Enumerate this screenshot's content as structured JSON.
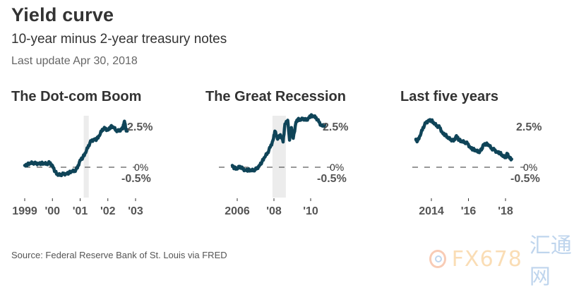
{
  "header": {
    "title": "Yield curve",
    "subtitle": "10-year minus 2-year treasury notes",
    "updated": "Last update Apr 30, 2018"
  },
  "footer": {
    "source": "Source: Federal Reserve Bank of St. Louis via FRED",
    "watermark_latin": "FX678",
    "watermark_cjk": "汇通网"
  },
  "colors": {
    "line": "#0f4458",
    "recession_band": "#ececec",
    "zero_line": "#333333",
    "text": "#333333",
    "axis_text": "#555555"
  },
  "chart_data": [
    {
      "type": "line",
      "title": "The Dot-com Boom",
      "xlabel": "",
      "ylabel": "",
      "unit": "%",
      "xlim": [
        1999.0,
        2003.0
      ],
      "ylim": [
        -0.5,
        2.5
      ],
      "x_ticks": [
        1999,
        2000,
        2001,
        2002,
        2003
      ],
      "x_tick_labels": [
        "1999",
        "'00",
        "'01",
        "'02",
        "'03"
      ],
      "y_labels": [
        {
          "value": 2.5,
          "label": "2.5%"
        },
        {
          "value": 0,
          "label": "0%"
        },
        {
          "value": -0.5,
          "label": "-0.5%"
        }
      ],
      "reference_line": {
        "value": 0,
        "style": "dashed"
      },
      "recession_band": [
        2001.13,
        2001.31
      ],
      "grid": false,
      "x": [
        1999.0,
        1999.1,
        1999.2,
        1999.3,
        1999.4,
        1999.5,
        1999.6,
        1999.7,
        1999.8,
        1999.9,
        2000.0,
        2000.1,
        2000.2,
        2000.3,
        2000.4,
        2000.5,
        2000.6,
        2000.7,
        2000.8,
        2000.9,
        2001.0,
        2001.1,
        2001.2,
        2001.3,
        2001.4,
        2001.5,
        2001.6,
        2001.7,
        2001.8,
        2001.9,
        2002.0,
        2002.1,
        2002.2,
        2002.3,
        2002.4,
        2002.5,
        2002.55,
        2002.6,
        2002.65,
        2002.7
      ],
      "values": [
        0.1,
        0.15,
        0.2,
        0.25,
        0.2,
        0.22,
        0.22,
        0.18,
        0.2,
        0.25,
        0.1,
        -0.25,
        -0.45,
        -0.4,
        -0.38,
        -0.35,
        -0.3,
        -0.25,
        -0.2,
        -0.05,
        0.4,
        0.55,
        0.8,
        1.2,
        1.45,
        1.55,
        1.55,
        1.75,
        2.1,
        2.15,
        2.05,
        2.25,
        2.2,
        2.05,
        2.0,
        2.15,
        2.2,
        2.55,
        2.1,
        2.0
      ]
    },
    {
      "type": "line",
      "title": "The Great Recession",
      "xlabel": "",
      "ylabel": "",
      "unit": "%",
      "xlim": [
        2005.0,
        2011.0
      ],
      "ylim": [
        -0.5,
        2.5
      ],
      "x_ticks": [
        2006,
        2008,
        2010
      ],
      "x_tick_labels": [
        "2006",
        "'08",
        "'10"
      ],
      "y_labels": [
        {
          "value": 2.5,
          "label": "2.5%"
        },
        {
          "value": 0,
          "label": "0%"
        },
        {
          "value": -0.5,
          "label": "-0.5%"
        }
      ],
      "reference_line": {
        "value": 0,
        "style": "dashed"
      },
      "recession_band": [
        2007.92,
        2008.65
      ],
      "grid": false,
      "x": [
        2005.73,
        2005.85,
        2006.0,
        2006.15,
        2006.3,
        2006.45,
        2006.6,
        2006.75,
        2006.9,
        2007.05,
        2007.2,
        2007.35,
        2007.5,
        2007.65,
        2007.8,
        2007.95,
        2008.05,
        2008.2,
        2008.35,
        2008.5,
        2008.6,
        2008.75,
        2008.85,
        2008.95,
        2009.05,
        2009.2,
        2009.3,
        2009.45,
        2009.6,
        2009.75,
        2009.9,
        2010.0,
        2010.15,
        2010.3,
        2010.45,
        2010.6,
        2010.77
      ],
      "values": [
        0.1,
        -0.05,
        -0.1,
        0.05,
        -0.1,
        -0.15,
        -0.15,
        -0.2,
        -0.15,
        -0.1,
        0.1,
        0.3,
        0.55,
        0.8,
        1.1,
        1.5,
        2.0,
        1.55,
        1.8,
        1.4,
        2.4,
        2.6,
        1.5,
        2.2,
        1.6,
        2.5,
        2.65,
        2.6,
        2.7,
        2.6,
        2.75,
        2.85,
        2.8,
        2.75,
        2.5,
        2.3,
        2.35
      ]
    },
    {
      "type": "line",
      "title": "Last five years",
      "xlabel": "",
      "ylabel": "",
      "unit": "%",
      "xlim": [
        2013.0,
        2019.0
      ],
      "ylim": [
        -0.5,
        2.5
      ],
      "x_ticks": [
        2014,
        2016,
        2018
      ],
      "x_tick_labels": [
        "2014",
        "'16",
        "'18"
      ],
      "y_labels": [
        {
          "value": 2.5,
          "label": "2.5%"
        },
        {
          "value": 0,
          "label": "0%"
        },
        {
          "value": -0.5,
          "label": "-0.5%"
        }
      ],
      "reference_line": {
        "value": 0,
        "style": "dashed"
      },
      "recession_band": null,
      "grid": false,
      "x": [
        2013.16,
        2013.25,
        2013.4,
        2013.55,
        2013.7,
        2013.85,
        2014.0,
        2014.15,
        2014.3,
        2014.45,
        2014.6,
        2014.75,
        2014.9,
        2015.05,
        2015.2,
        2015.35,
        2015.5,
        2015.65,
        2015.8,
        2015.95,
        2016.1,
        2016.25,
        2016.4,
        2016.55,
        2016.7,
        2016.8,
        2016.95,
        2017.1,
        2017.25,
        2017.4,
        2017.55,
        2017.7,
        2017.85,
        2018.0,
        2018.1,
        2018.2,
        2018.33
      ],
      "values": [
        1.55,
        1.45,
        1.75,
        2.2,
        2.45,
        2.6,
        2.6,
        2.4,
        2.3,
        2.2,
        1.9,
        1.8,
        1.6,
        1.55,
        1.45,
        1.75,
        1.5,
        1.4,
        1.4,
        1.3,
        1.1,
        1.0,
        0.9,
        0.85,
        0.95,
        1.25,
        1.3,
        1.2,
        1.05,
        0.95,
        0.85,
        0.8,
        0.6,
        0.55,
        0.75,
        0.55,
        0.45
      ]
    }
  ]
}
